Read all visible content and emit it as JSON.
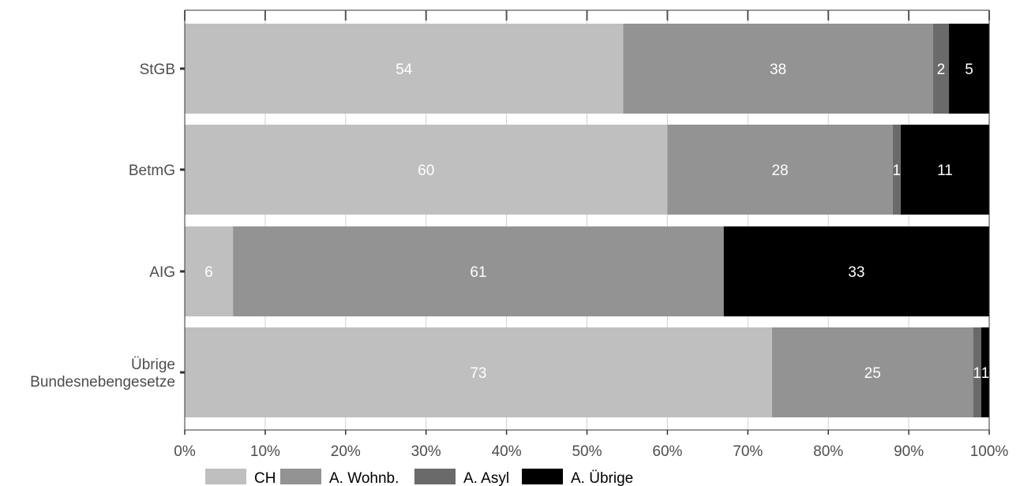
{
  "chart_data": {
    "type": "bar",
    "orientation": "horizontal",
    "stacked": true,
    "categories": [
      "StGB",
      "BetmG",
      "AIG",
      "Übrige Bundesnebengesetze"
    ],
    "category_lines": [
      [
        "StGB"
      ],
      [
        "BetmG"
      ],
      [
        "AIG"
      ],
      [
        "Übrige",
        "Bundesnebengesetze"
      ]
    ],
    "series": [
      {
        "name": "CH",
        "color": "#bfbfbf",
        "values": [
          54.5,
          60,
          6,
          73
        ],
        "labels": [
          "54",
          "60",
          "6",
          "73"
        ]
      },
      {
        "name": "A. Wohnb.",
        "color": "#939393",
        "values": [
          38.5,
          28,
          61,
          25
        ],
        "labels": [
          "38",
          "28",
          "61",
          "25"
        ]
      },
      {
        "name": "A. Asyl",
        "color": "#6a6a6a",
        "values": [
          2,
          1,
          0,
          1
        ],
        "labels": [
          "2",
          "1",
          "",
          "1"
        ]
      },
      {
        "name": "A. Übrige",
        "color": "#000000",
        "values": [
          5,
          11,
          33,
          1
        ],
        "labels": [
          "5",
          "11",
          "33",
          "1"
        ]
      }
    ],
    "x_ticks": [
      "0%",
      "10%",
      "20%",
      "30%",
      "40%",
      "50%",
      "60%",
      "70%",
      "80%",
      "90%",
      "100%"
    ],
    "xlim": [
      0,
      100
    ],
    "grid": true,
    "legend_position": "bottom",
    "title": "",
    "xlabel": "",
    "ylabel": ""
  }
}
